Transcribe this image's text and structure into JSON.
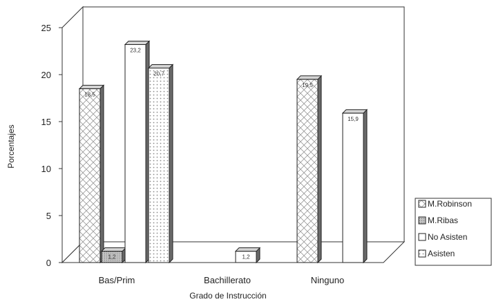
{
  "chart_data": {
    "type": "bar",
    "xlabel": "Grado de Instrucción",
    "ylabel": "Porcentajes",
    "ylim": [
      0,
      25
    ],
    "yticks": [
      0,
      5,
      10,
      15,
      20,
      25
    ],
    "categories": [
      "Bas/Prim",
      "Bachillerato",
      "Ninguno"
    ],
    "series": [
      {
        "name": "M.Robinson",
        "values": [
          18.5,
          null,
          19.5
        ],
        "labels": [
          "18,5",
          "",
          "19,5"
        ],
        "pattern": "crosshatch",
        "color": "#ffffff"
      },
      {
        "name": "M.Ribas",
        "values": [
          1.2,
          null,
          null
        ],
        "labels": [
          "1,2",
          "",
          ""
        ],
        "pattern": "fine-dots",
        "color": "#bdbdbd"
      },
      {
        "name": "No Asisten",
        "values": [
          23.2,
          1.2,
          15.9
        ],
        "labels": [
          "23,2",
          "1,2",
          "15,9"
        ],
        "pattern": "solid",
        "color": "#ffffff"
      },
      {
        "name": "Asisten",
        "values": [
          20.7,
          null,
          null
        ],
        "labels": [
          "20,7",
          "",
          ""
        ],
        "pattern": "dots",
        "color": "#ffffff"
      }
    ],
    "grid": false,
    "legend_position": "right",
    "style": "3d-clustered"
  }
}
